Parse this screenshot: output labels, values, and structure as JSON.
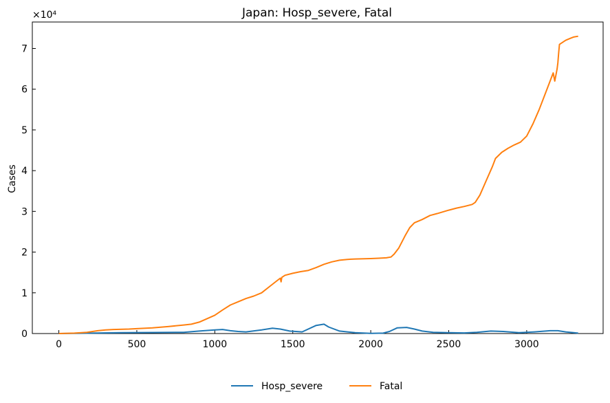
{
  "chart_data": {
    "type": "line",
    "title": "Japan: Hosp_severe, Fatal",
    "xlabel": "",
    "ylabel": "Cases",
    "y_scale_label": "×10⁴",
    "xlim": [
      -170,
      3490
    ],
    "ylim": [
      0,
      76500
    ],
    "x_ticks": [
      0,
      500,
      1000,
      1500,
      2000,
      2500,
      3000
    ],
    "y_ticks": [
      0,
      10000,
      20000,
      30000,
      40000,
      50000,
      60000,
      70000
    ],
    "y_tick_labels": [
      "0",
      "1",
      "2",
      "3",
      "4",
      "5",
      "6",
      "7"
    ],
    "x_tick_labels": [
      "0",
      "500",
      "1000",
      "1500",
      "2000",
      "2500",
      "3000"
    ],
    "grid": false,
    "legend_position": "bottom-center",
    "series": [
      {
        "name": "Hosp_severe",
        "color": "#1f77b4",
        "x": [
          0,
          200,
          400,
          600,
          800,
          900,
          1000,
          1050,
          1100,
          1150,
          1200,
          1300,
          1370,
          1420,
          1480,
          1560,
          1650,
          1700,
          1730,
          1800,
          1900,
          2000,
          2080,
          2120,
          2170,
          2230,
          2280,
          2330,
          2400,
          2500,
          2600,
          2680,
          2770,
          2850,
          2950,
          3050,
          3150,
          3200,
          3250,
          3330
        ],
        "y": [
          0,
          100,
          200,
          250,
          300,
          600,
          900,
          1000,
          700,
          500,
          400,
          900,
          1300,
          1100,
          600,
          400,
          2000,
          2300,
          1600,
          600,
          200,
          50,
          100,
          500,
          1400,
          1500,
          1100,
          600,
          300,
          200,
          150,
          300,
          600,
          500,
          200,
          400,
          700,
          700,
          400,
          100
        ]
      },
      {
        "name": "Fatal",
        "color": "#ff7f0e",
        "x": [
          0,
          100,
          180,
          250,
          300,
          350,
          450,
          500,
          600,
          700,
          800,
          850,
          900,
          1000,
          1050,
          1100,
          1150,
          1200,
          1250,
          1300,
          1350,
          1400,
          1420,
          1425,
          1430,
          1450,
          1500,
          1550,
          1600,
          1650,
          1700,
          1750,
          1800,
          1850,
          1900,
          2000,
          2050,
          2100,
          2130,
          2150,
          2180,
          2220,
          2250,
          2280,
          2330,
          2380,
          2430,
          2500,
          2550,
          2600,
          2650,
          2670,
          2700,
          2740,
          2780,
          2800,
          2840,
          2880,
          2920,
          2960,
          3000,
          3040,
          3080,
          3120,
          3150,
          3170,
          3180,
          3195,
          3200,
          3205,
          3210,
          3250,
          3280,
          3300,
          3330
        ],
        "y": [
          0,
          100,
          300,
          700,
          900,
          1000,
          1100,
          1200,
          1400,
          1700,
          2100,
          2300,
          2800,
          4500,
          5800,
          7000,
          7800,
          8600,
          9200,
          10000,
          11500,
          13000,
          13600,
          12700,
          13800,
          14300,
          14800,
          15200,
          15500,
          16200,
          17000,
          17600,
          18000,
          18200,
          18300,
          18400,
          18500,
          18600,
          18800,
          19500,
          21000,
          24000,
          26000,
          27200,
          28000,
          29000,
          29500,
          30300,
          30800,
          31200,
          31700,
          32200,
          34000,
          37500,
          41000,
          43000,
          44500,
          45500,
          46300,
          47000,
          48500,
          51500,
          55000,
          59000,
          62000,
          64000,
          62000,
          65000,
          66500,
          69000,
          71000,
          72000,
          72500,
          72800,
          73000
        ]
      }
    ]
  }
}
